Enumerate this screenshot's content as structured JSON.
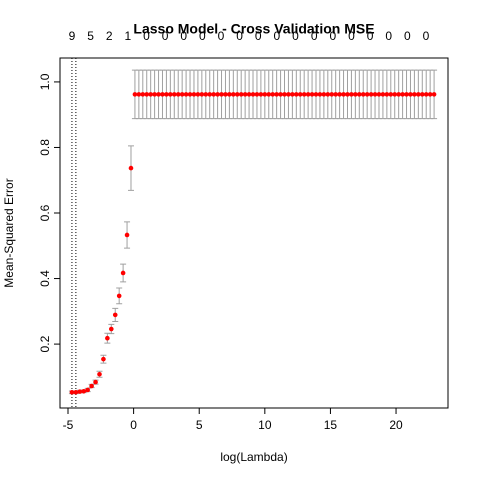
{
  "chart_data": {
    "type": "errorbar-scatter",
    "title": "Lasso Model - Cross Validation MSE",
    "xlabel": "log(Lambda)",
    "ylabel": "Mean-Squared Error",
    "xlim": [
      -5.61,
      23.96
    ],
    "ylim": [
      0.005,
      1.073
    ],
    "xticks": [
      -5,
      0,
      5,
      10,
      15,
      20
    ],
    "yticks": [
      0.2,
      0.4,
      0.6,
      0.8,
      {
        "value": 1,
        "label": "1.0"
      }
    ],
    "top_ticks": [
      {
        "value": -4.7,
        "label": "9"
      },
      {
        "value": -3.28,
        "label": "5"
      },
      {
        "value": -1.86,
        "label": "2"
      },
      {
        "value": -0.44,
        "label": "1"
      },
      {
        "value": 0.98,
        "label": "0"
      },
      {
        "value": 2.4,
        "label": "0"
      },
      {
        "value": 3.82,
        "label": "0"
      },
      {
        "value": 5.24,
        "label": "0"
      },
      {
        "value": 6.66,
        "label": "0"
      },
      {
        "value": 8.08,
        "label": "0"
      },
      {
        "value": 9.5,
        "label": "0"
      },
      {
        "value": 10.92,
        "label": "0"
      },
      {
        "value": 12.34,
        "label": "0"
      },
      {
        "value": 13.76,
        "label": "0"
      },
      {
        "value": 15.18,
        "label": "0"
      },
      {
        "value": 16.6,
        "label": "0"
      },
      {
        "value": 18.02,
        "label": "0"
      },
      {
        "value": 19.44,
        "label": "0"
      },
      {
        "value": 20.86,
        "label": "0"
      },
      {
        "value": 22.28,
        "label": "0"
      }
    ],
    "vlines": [
      -4.7,
      -4.4
    ],
    "color": "#ff0000",
    "error_color": "#a0a0a0",
    "x": [
      -4.7,
      -4.4,
      -4.1,
      -3.8,
      -3.5,
      -3.2,
      -2.9,
      -2.6,
      -2.3,
      -2.0,
      -1.7,
      -1.4,
      -1.1,
      -0.8,
      -0.5,
      -0.2,
      0.1,
      0.4,
      0.7,
      1.0,
      1.3,
      1.6,
      1.9,
      2.2,
      2.5,
      2.8,
      3.1,
      3.4,
      3.7,
      4.0,
      4.3,
      4.6,
      4.9,
      5.2,
      5.5,
      5.8,
      6.1,
      6.4,
      6.7,
      7.0,
      7.3,
      7.6,
      7.9,
      8.2,
      8.5,
      8.8,
      9.1,
      9.4,
      9.7,
      10.0,
      10.3,
      10.6,
      10.9,
      11.2,
      11.5,
      11.8,
      12.1,
      12.4,
      12.7,
      13.0,
      13.3,
      13.6,
      13.9,
      14.2,
      14.5,
      14.8,
      15.1,
      15.4,
      15.7,
      16.0,
      16.3,
      16.6,
      16.9,
      17.2,
      17.5,
      17.8,
      18.1,
      18.4,
      18.7,
      19.0,
      19.3,
      19.6,
      19.9,
      20.2,
      20.5,
      20.8,
      21.1,
      21.4,
      21.7,
      22.0,
      22.3,
      22.6,
      22.9
    ],
    "values": [
      0.053,
      0.053,
      0.055,
      0.056,
      0.06,
      0.072,
      0.084,
      0.108,
      0.154,
      0.218,
      0.246,
      0.289,
      0.347,
      0.417,
      0.533,
      0.737,
      0.962,
      0.962,
      0.962,
      0.962,
      0.962,
      0.962,
      0.962,
      0.962,
      0.962,
      0.962,
      0.962,
      0.962,
      0.962,
      0.962,
      0.962,
      0.962,
      0.962,
      0.962,
      0.962,
      0.962,
      0.962,
      0.962,
      0.962,
      0.962,
      0.962,
      0.962,
      0.962,
      0.962,
      0.962,
      0.962,
      0.962,
      0.962,
      0.962,
      0.962,
      0.962,
      0.962,
      0.962,
      0.962,
      0.962,
      0.962,
      0.962,
      0.962,
      0.962,
      0.962,
      0.962,
      0.962,
      0.962,
      0.962,
      0.962,
      0.962,
      0.962,
      0.962,
      0.962,
      0.962,
      0.962,
      0.962,
      0.962,
      0.962,
      0.962,
      0.962,
      0.962,
      0.962,
      0.962,
      0.962,
      0.962,
      0.962,
      0.962,
      0.962,
      0.962,
      0.962,
      0.962,
      0.962,
      0.962,
      0.962,
      0.962,
      0.962,
      0.962
    ],
    "errors": [
      0.004,
      0.004,
      0.004,
      0.004,
      0.005,
      0.005,
      0.006,
      0.009,
      0.012,
      0.015,
      0.014,
      0.02,
      0.024,
      0.027,
      0.04,
      0.068,
      0.074,
      0.074,
      0.074,
      0.074,
      0.074,
      0.074,
      0.074,
      0.074,
      0.074,
      0.074,
      0.074,
      0.074,
      0.074,
      0.074,
      0.074,
      0.074,
      0.074,
      0.074,
      0.074,
      0.074,
      0.074,
      0.074,
      0.074,
      0.074,
      0.074,
      0.074,
      0.074,
      0.074,
      0.074,
      0.074,
      0.074,
      0.074,
      0.074,
      0.074,
      0.074,
      0.074,
      0.074,
      0.074,
      0.074,
      0.074,
      0.074,
      0.074,
      0.074,
      0.074,
      0.074,
      0.074,
      0.074,
      0.074,
      0.074,
      0.074,
      0.074,
      0.074,
      0.074,
      0.074,
      0.074,
      0.074,
      0.074,
      0.074,
      0.074,
      0.074,
      0.074,
      0.074,
      0.074,
      0.074,
      0.074,
      0.074,
      0.074,
      0.074,
      0.074,
      0.074,
      0.074,
      0.074,
      0.074,
      0.074,
      0.074,
      0.074,
      0.074
    ]
  }
}
